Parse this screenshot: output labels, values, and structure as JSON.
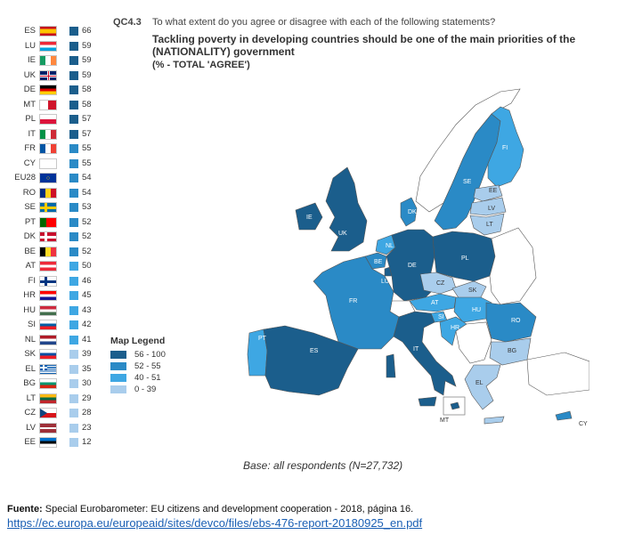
{
  "question": {
    "id": "QC4.3",
    "text": "To what extent do you agree or disagree with each of the following statements?",
    "statement": "Tackling poverty in developing countries should be one of the main priorities of the (NATIONALITY) government",
    "measure": "(% - TOTAL 'AGREE')"
  },
  "legend": {
    "title": "Map Legend",
    "items": [
      {
        "label": "56 - 100",
        "color": "#1b5e8c"
      },
      {
        "label": "52 - 55",
        "color": "#2a8ac6"
      },
      {
        "label": "40 - 51",
        "color": "#3ea7e3"
      },
      {
        "label": "0 - 39",
        "color": "#a9cdec"
      }
    ]
  },
  "base": "Base: all respondents (N=27,732)",
  "source": {
    "label": "Fuente:",
    "text": " Special Eurobarometer: EU citizens and development cooperation - 2018, página 16.",
    "url": "https://ec.europa.eu/europeaid/sites/devco/files/ebs-476-report-20180925_en.pdf"
  },
  "chart_data": {
    "type": "bar",
    "title": "Tackling poverty in developing countries should be one of the main priorities of the (NATIONALITY) government",
    "ylabel": "% - TOTAL 'AGREE'",
    "categories": [
      "ES",
      "LU",
      "IE",
      "UK",
      "DE",
      "MT",
      "PL",
      "IT",
      "FR",
      "CY",
      "EU28",
      "RO",
      "SE",
      "PT",
      "DK",
      "BE",
      "AT",
      "FI",
      "HR",
      "HU",
      "SI",
      "NL",
      "SK",
      "EL",
      "BG",
      "LT",
      "CZ",
      "LV",
      "EE"
    ],
    "values": [
      66,
      59,
      59,
      59,
      58,
      58,
      57,
      57,
      55,
      55,
      54,
      54,
      53,
      52,
      52,
      52,
      50,
      46,
      45,
      43,
      42,
      41,
      39,
      35,
      30,
      29,
      28,
      23,
      12
    ],
    "ylim": [
      0,
      100
    ],
    "map_labels": [
      "FI",
      "SE",
      "EE",
      "LV",
      "LT",
      "DK",
      "IE",
      "UK",
      "PL",
      "DE",
      "NL",
      "BE",
      "LU",
      "CZ",
      "SK",
      "FR",
      "AT",
      "HU",
      "RO",
      "SI",
      "HR",
      "BG",
      "PT",
      "ES",
      "IT",
      "EL",
      "MT",
      "CY"
    ]
  }
}
